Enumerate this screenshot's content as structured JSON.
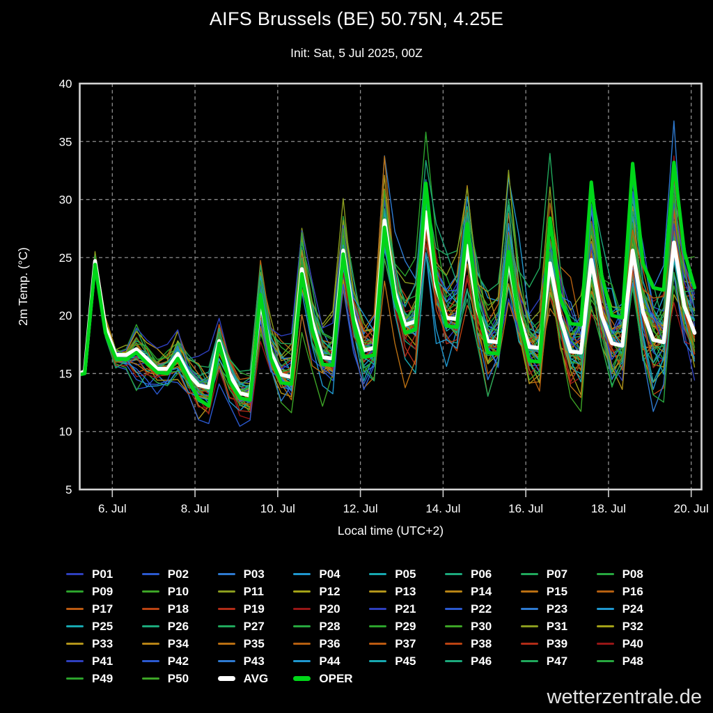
{
  "title": "AIFS Brussels (BE) 50.75N, 4.25E",
  "subtitle": "Init: Sat, 5 Jul 2025, 00Z",
  "watermark": "wetterzentrale.de",
  "chart_data": {
    "type": "line",
    "title": "AIFS Brussels (BE) 50.75N, 4.25E",
    "subtitle": "Init: Sat, 5 Jul 2025, 00Z",
    "xlabel": "Local time (UTC+2)",
    "ylabel": "2m Temp. (°C)",
    "ylim": [
      5,
      40
    ],
    "yticks": [
      5,
      10,
      15,
      20,
      25,
      30,
      35,
      40
    ],
    "ygrid": [
      10,
      15,
      20,
      25,
      30,
      35
    ],
    "grid": "dashed",
    "background": "#000000",
    "xticks": [
      {
        "label": "6. Jul",
        "offset_days": 0
      },
      {
        "label": "8. Jul",
        "offset_days": 2
      },
      {
        "label": "10. Jul",
        "offset_days": 4
      },
      {
        "label": "12. Jul",
        "offset_days": 6
      },
      {
        "label": "14. Jul",
        "offset_days": 8
      },
      {
        "label": "16. Jul",
        "offset_days": 10
      },
      {
        "label": "18. Jul",
        "offset_days": 12
      },
      {
        "label": "20. Jul",
        "offset_days": 14
      }
    ],
    "x_time": {
      "reference_tick": "6. Jul 00:00 local",
      "start_offset_days": -0.917,
      "step_days": 0.25,
      "points": 61
    },
    "series": {
      "avg": {
        "label": "AVG",
        "color": "#ffffff",
        "values": [
          14.8,
          15.2,
          24.7,
          19.0,
          16.6,
          16.6,
          17.1,
          16.3,
          15.4,
          15.4,
          16.7,
          15.0,
          14.0,
          13.8,
          17.8,
          15.0,
          13.3,
          13.1,
          21.3,
          16.8,
          14.9,
          14.7,
          24.0,
          19.5,
          16.4,
          16.3,
          25.6,
          20.0,
          17.0,
          17.2,
          28.2,
          22.0,
          19.2,
          19.5,
          28.9,
          22.5,
          19.8,
          19.7,
          26.0,
          20.5,
          17.8,
          17.7,
          24.9,
          20.0,
          17.3,
          17.2,
          24.5,
          19.8,
          16.9,
          16.8,
          24.8,
          20.0,
          17.6,
          17.4,
          25.6,
          20.3,
          17.9,
          17.7,
          26.3,
          20.8,
          18.5
        ]
      },
      "oper": {
        "label": "OPER",
        "color": "#00d619",
        "values": [
          14.8,
          15.0,
          24.4,
          18.5,
          16.3,
          16.2,
          16.8,
          15.9,
          15.1,
          15.0,
          16.3,
          14.6,
          12.8,
          12.2,
          17.6,
          14.3,
          12.9,
          12.7,
          21.8,
          16.3,
          14.2,
          14.1,
          23.6,
          18.8,
          15.8,
          15.7,
          25.3,
          19.5,
          16.4,
          16.6,
          27.6,
          21.5,
          18.5,
          18.8,
          31.4,
          23.0,
          19.1,
          19.0,
          27.9,
          20.8,
          16.8,
          16.7,
          25.5,
          19.8,
          16.1,
          16.0,
          28.4,
          21.5,
          19.3,
          19.2,
          31.5,
          23.5,
          20.0,
          19.8,
          33.1,
          24.5,
          22.4,
          22.2,
          33.2,
          25.5,
          22.4
        ]
      },
      "ensemble": {
        "count": 50,
        "labels": [
          "P01",
          "P02",
          "P03",
          "P04",
          "P05",
          "P06",
          "P07",
          "P08",
          "P09",
          "P10",
          "P11",
          "P12",
          "P13",
          "P14",
          "P15",
          "P16",
          "P17",
          "P18",
          "P19",
          "P20",
          "P21",
          "P22",
          "P23",
          "P24",
          "P25",
          "P26",
          "P27",
          "P28",
          "P29",
          "P30",
          "P31",
          "P32",
          "P33",
          "P34",
          "P35",
          "P36",
          "P37",
          "P38",
          "P39",
          "P40",
          "P41",
          "P42",
          "P43",
          "P44",
          "P45",
          "P46",
          "P47",
          "P48",
          "P49",
          "P50"
        ],
        "palette_cycle": [
          "#2e3fbe",
          "#2b59cf",
          "#2e7ad1",
          "#1f97cf",
          "#17a8b0",
          "#1ca97c",
          "#20a85c",
          "#27a73f",
          "#2ca32c",
          "#3da426",
          "#8a9c1e",
          "#a3a117",
          "#b2941a",
          "#b78315",
          "#b96f12",
          "#b55f10",
          "#bb5a11",
          "#ba4312",
          "#b12c17",
          "#971616"
        ],
        "spread_halfwidth": [
          0.2,
          0.3,
          1.6,
          1.0,
          0.8,
          0.9,
          1.7,
          1.2,
          1.0,
          1.1,
          1.8,
          1.3,
          1.5,
          1.5,
          1.8,
          1.4,
          1.4,
          1.4,
          2.0,
          1.6,
          1.8,
          1.8,
          2.5,
          2.0,
          2.0,
          2.0,
          2.8,
          2.2,
          2.1,
          2.1,
          3.0,
          2.4,
          2.6,
          2.6,
          3.2,
          2.7,
          2.8,
          2.8,
          4.0,
          3.0,
          3.0,
          3.0,
          4.0,
          3.2,
          3.2,
          3.2,
          4.4,
          3.4,
          3.3,
          3.3,
          4.4,
          3.5,
          3.5,
          3.5,
          4.8,
          3.7,
          3.7,
          3.7,
          5.2,
          3.9,
          4.2
        ]
      }
    },
    "legend_position": "bottom",
    "legend_columns": 8
  }
}
